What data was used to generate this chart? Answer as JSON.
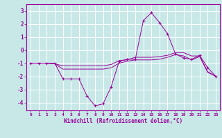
{
  "xlabel": "Windchill (Refroidissement éolien,°C)",
  "background_color": "#c8e8e8",
  "grid_color": "#b0d0d0",
  "line_color": "#990099",
  "xlim": [
    -0.5,
    23.5
  ],
  "ylim": [
    -4.6,
    3.5
  ],
  "yticks": [
    -4,
    -3,
    -2,
    -1,
    0,
    1,
    2,
    3
  ],
  "xticks": [
    0,
    1,
    2,
    3,
    4,
    5,
    6,
    7,
    8,
    9,
    10,
    11,
    12,
    13,
    14,
    15,
    16,
    17,
    18,
    19,
    20,
    21,
    22,
    23
  ],
  "series": [
    [
      -1,
      -1,
      -1,
      -1,
      -2.2,
      -2.2,
      -2.2,
      -3.5,
      -4.25,
      -4.1,
      -2.8,
      -0.85,
      -0.7,
      -0.7,
      2.25,
      2.85,
      2.1,
      1.25,
      -0.3,
      -0.6,
      -0.7,
      -0.4,
      -1.35,
      -2.0
    ],
    [
      -1,
      -1,
      -1,
      -1.05,
      -1.2,
      -1.2,
      -1.2,
      -1.2,
      -1.2,
      -1.2,
      -1.1,
      -0.8,
      -0.75,
      -0.55,
      -0.55,
      -0.55,
      -0.5,
      -0.4,
      -0.2,
      -0.2,
      -0.45,
      -0.45,
      -1.65,
      -2.0
    ],
    [
      -1,
      -1,
      -1,
      -1.05,
      -1.45,
      -1.45,
      -1.45,
      -1.45,
      -1.45,
      -1.45,
      -1.35,
      -1.0,
      -0.85,
      -0.75,
      -0.75,
      -0.75,
      -0.7,
      -0.55,
      -0.35,
      -0.45,
      -0.75,
      -0.5,
      -1.7,
      -2.0
    ]
  ]
}
